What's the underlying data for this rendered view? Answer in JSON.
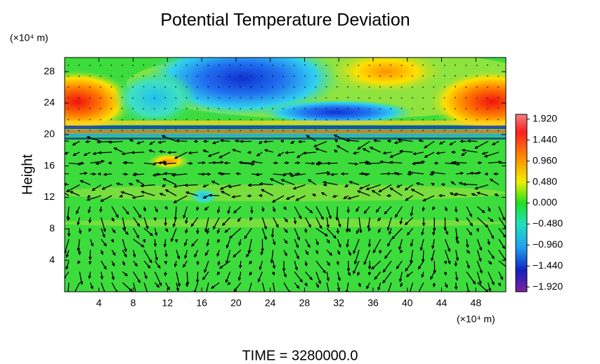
{
  "chart_data": {
    "type": "contour",
    "title": "Potential Temperature Deviation",
    "y_label": "Height",
    "y_unit": "(×10⁴ m)",
    "x_unit": "(×10⁴ m)",
    "footer": "TIME = 3280000.0",
    "xlim": [
      0,
      51.5
    ],
    "ylim": [
      0,
      29.8
    ],
    "xticks": [
      4,
      8,
      12,
      16,
      20,
      24,
      28,
      32,
      36,
      40,
      44,
      48
    ],
    "yticks": [
      4,
      8,
      12,
      16,
      20,
      24,
      28
    ],
    "colorbar": {
      "clim": [
        -2.03,
        2.03
      ],
      "ticks": [
        {
          "value": 1.92,
          "label": "1.920"
        },
        {
          "value": 1.44,
          "label": "1.440"
        },
        {
          "value": 0.96,
          "label": "0.960"
        },
        {
          "value": 0.48,
          "label": "0.480"
        },
        {
          "value": 0,
          "label": "0.000"
        },
        {
          "value": -0.48,
          "label": "−0.480"
        },
        {
          "value": -0.96,
          "label": "−0.960"
        },
        {
          "value": -1.44,
          "label": "−1.440"
        },
        {
          "value": -1.92,
          "label": "−1.920"
        }
      ]
    }
  }
}
